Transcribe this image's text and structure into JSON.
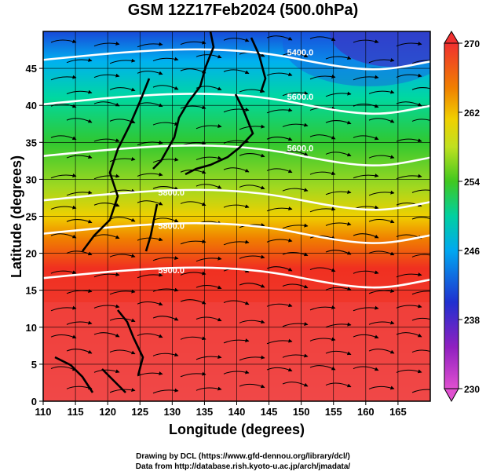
{
  "title": "GSM 12Z17Feb2024 (500.0hPa)",
  "x_axis": {
    "label": "Longitude (degrees)",
    "range": [
      110,
      170
    ],
    "ticks": [
      110,
      115,
      120,
      125,
      130,
      135,
      140,
      145,
      150,
      155,
      160,
      165
    ]
  },
  "y_axis": {
    "label": "Latitude  (degrees)",
    "range": [
      0,
      50
    ],
    "ticks": [
      0,
      5,
      10,
      15,
      20,
      25,
      30,
      35,
      40,
      45
    ]
  },
  "colorbar": {
    "ticks": [
      230,
      238,
      246,
      254,
      262,
      270
    ],
    "range": [
      230,
      270
    ],
    "colors": [
      "#e040c0",
      "#8000c0",
      "#2030d0",
      "#00a0f0",
      "#00d0a0",
      "#40c820",
      "#a0d820",
      "#f0d000",
      "#f08000",
      "#f03020",
      "#f04040"
    ]
  },
  "contours": [
    {
      "label": "5400.0",
      "lat_at_150": 47
    },
    {
      "label": "5600.0",
      "lat_at_150": 41
    },
    {
      "label": "5600.0",
      "lat_at_150": 34
    },
    {
      "label": "5800.0",
      "lat_at_130": 28
    },
    {
      "label": "5800.0",
      "lat_at_130": 23.5
    },
    {
      "label": "5900.0",
      "lat_at_130": 17.5
    }
  ],
  "credits": {
    "line1": "Drawing by DCL (https://www.gfd-dennou.org/library/dcl/)",
    "line2": "Data from http://database.rish.kyoto-u.ac.jp/arch/jmadata/"
  }
}
